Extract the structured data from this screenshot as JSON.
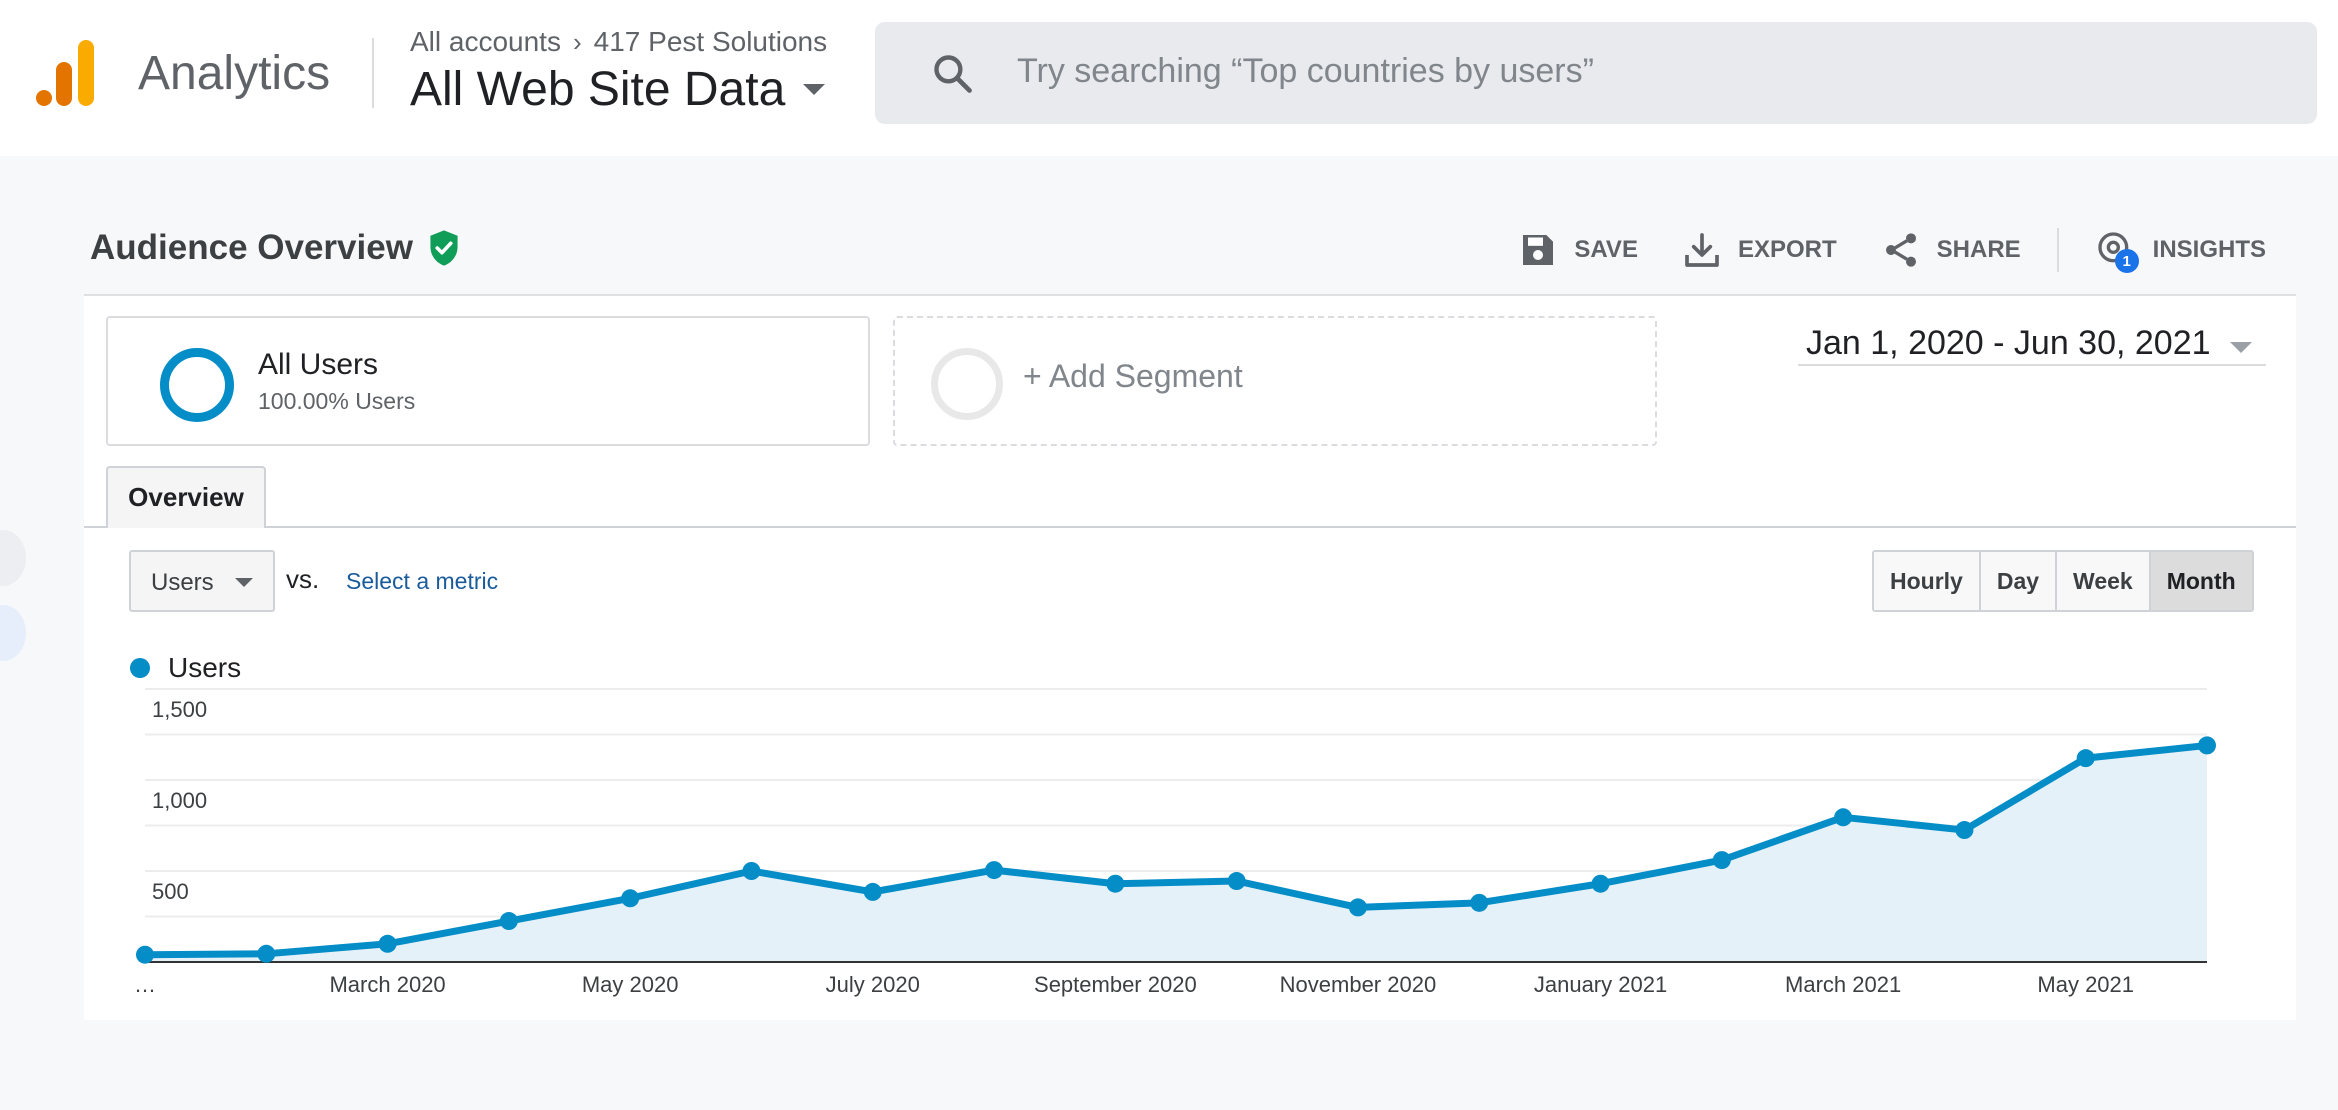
{
  "header": {
    "app_name": "Analytics",
    "breadcrumb": {
      "account": "All accounts",
      "property": "417 Pest Solutions"
    },
    "view_name": "All Web Site Data",
    "search": {
      "placeholder": "Try searching “Top countries by users”"
    }
  },
  "report": {
    "title": "Audience Overview",
    "actions": {
      "save": "SAVE",
      "export": "EXPORT",
      "share": "SHARE",
      "insights": "INSIGHTS",
      "insights_badge": "1"
    }
  },
  "segments": {
    "active": {
      "name": "All Users",
      "detail": "100.00% Users"
    },
    "add_label": "+ Add Segment"
  },
  "date_range": "Jan 1, 2020 - Jun 30, 2021",
  "tabs": [
    "Overview"
  ],
  "controls": {
    "metric": "Users",
    "vs": "vs.",
    "select_metric": "Select a metric",
    "granularity": [
      "Hourly",
      "Day",
      "Week",
      "Month"
    ],
    "granularity_active": "Month"
  },
  "colors": {
    "series": "#058dc7",
    "area": "#e5f1f8",
    "accent": "#1a73e8",
    "verified": "#0f9d58"
  },
  "chart_data": {
    "type": "area",
    "x": [
      "Jan 2020",
      "Feb 2020",
      "Mar 2020",
      "Apr 2020",
      "May 2020",
      "Jun 2020",
      "Jul 2020",
      "Aug 2020",
      "Sep 2020",
      "Oct 2020",
      "Nov 2020",
      "Dec 2020",
      "Jan 2021",
      "Feb 2021",
      "Mar 2021",
      "Apr 2021",
      "May 2021",
      "Jun 2021"
    ],
    "x_tick_labels": [
      "…",
      "",
      "March 2020",
      "",
      "May 2020",
      "",
      "July 2020",
      "",
      "September 2020",
      "",
      "November 2020",
      "",
      "January 2021",
      "",
      "March 2021",
      "",
      "May 2021",
      ""
    ],
    "series": [
      {
        "name": "Users",
        "values": [
          40,
          45,
          100,
          225,
          350,
          500,
          385,
          505,
          430,
          445,
          300,
          325,
          430,
          560,
          795,
          725,
          1120,
          1190
        ]
      }
    ],
    "y_ticks": [
      500,
      1000,
      1500
    ],
    "y_tick_labels": [
      "500",
      "1,000",
      "1,500"
    ],
    "ylim": [
      0,
      1500
    ],
    "grid": true
  }
}
